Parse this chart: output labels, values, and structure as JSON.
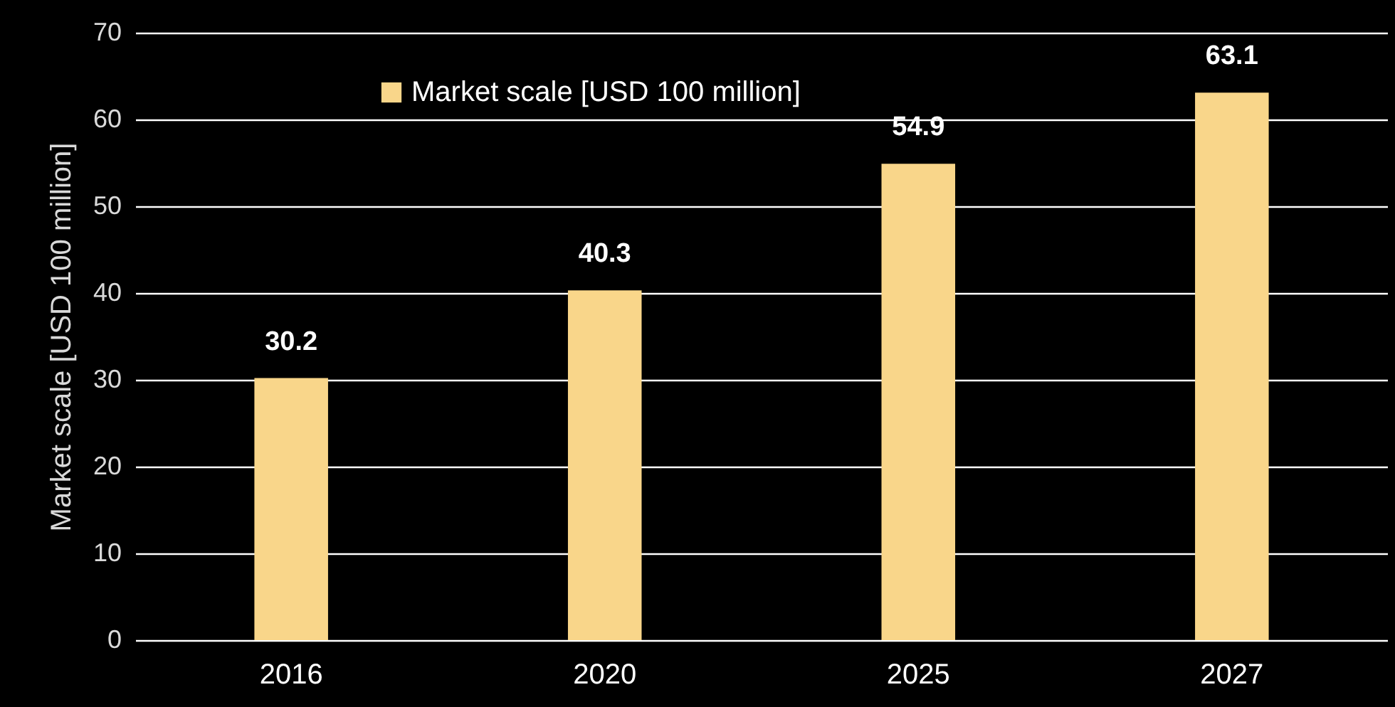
{
  "chart_data": {
    "type": "bar",
    "ylabel": "Market scale [USD 100 million]",
    "categories": [
      "2016",
      "2020",
      "2025",
      "2027"
    ],
    "series": [
      {
        "name": "Market scale [USD 100 million]",
        "color": "#f9d68a",
        "values": [
          30.2,
          40.3,
          54.9,
          63.1
        ]
      }
    ],
    "ylim": [
      0,
      70
    ],
    "yticks": [
      0,
      10,
      20,
      30,
      40,
      50,
      60,
      70
    ],
    "grid": "y",
    "legend": "top left",
    "data_labels": true
  }
}
